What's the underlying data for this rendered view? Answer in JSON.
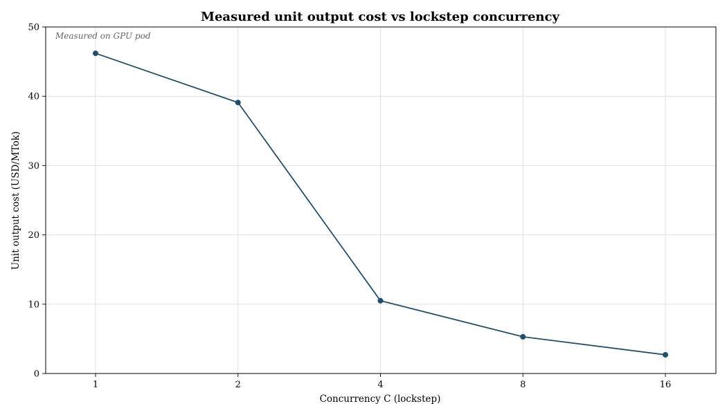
{
  "chart_data": {
    "type": "line",
    "title": "Measured unit output cost vs lockstep concurrency",
    "xlabel": "Concurrency C (lockstep)",
    "ylabel": "Unit output cost (USD/MTok)",
    "annotation": "Measured on GPU pod",
    "x_scale": "log2",
    "categories": [
      "1",
      "2",
      "4",
      "8",
      "16"
    ],
    "x": [
      1,
      2,
      4,
      8,
      16
    ],
    "yticks": [
      "0",
      "10",
      "20",
      "30",
      "40",
      "50"
    ],
    "ylim": [
      0,
      50
    ],
    "grid": true,
    "series": [
      {
        "values": [
          46.2,
          39.1,
          10.5,
          5.3,
          2.7
        ]
      }
    ],
    "colors": {
      "line": "#1f4e6e",
      "grid": "#d9d9d9",
      "axis": "#000000"
    }
  }
}
